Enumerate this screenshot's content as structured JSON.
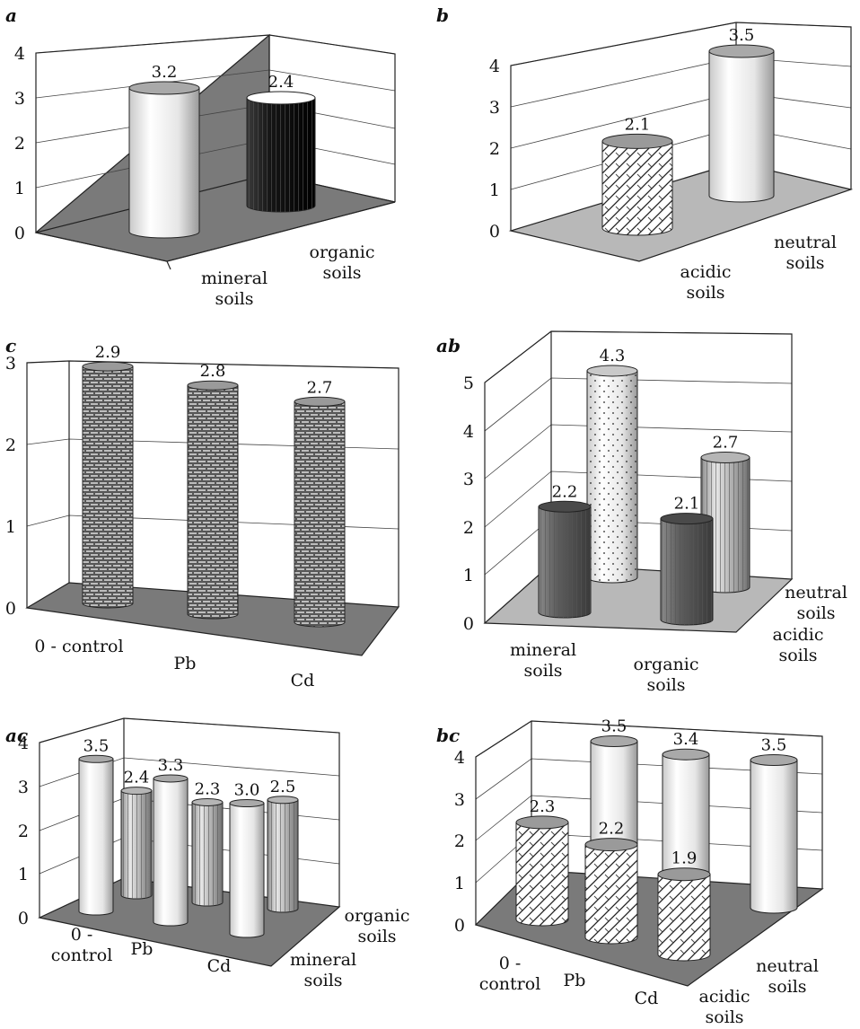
{
  "chart_data": [
    {
      "id": "a",
      "title": "a",
      "type": "bar",
      "ylim": [
        0,
        4
      ],
      "categories": [
        "mineral soils",
        "organic soils"
      ],
      "values": [
        3.2,
        2.4
      ],
      "labels": [
        "3.2",
        "2.4"
      ],
      "styles": [
        "light",
        "black"
      ]
    },
    {
      "id": "b",
      "title": "b",
      "type": "bar",
      "ylim": [
        0,
        4
      ],
      "categories": [
        "acidic soils",
        "neutral soils"
      ],
      "values": [
        2.1,
        3.5
      ],
      "labels": [
        "2.1",
        "3.5"
      ],
      "styles": [
        "hatch",
        "light"
      ]
    },
    {
      "id": "c",
      "title": "c",
      "type": "bar",
      "ylim": [
        0,
        3
      ],
      "categories": [
        "0 - control",
        "Pb",
        "Cd"
      ],
      "values": [
        2.9,
        2.8,
        2.7
      ],
      "labels": [
        "2.9",
        "2.8",
        "2.7"
      ],
      "styles": [
        "brick",
        "brick",
        "brick"
      ]
    },
    {
      "id": "ab",
      "title": "ab",
      "type": "bar",
      "ylim": [
        0,
        5
      ],
      "categories": [
        "mineral soils",
        "organic soils"
      ],
      "series": [
        {
          "name": "acidic soils",
          "values": [
            2.2,
            2.1
          ]
        },
        {
          "name": "neutral soils",
          "values": [
            4.3,
            2.7
          ]
        }
      ],
      "labels": [
        "2.2",
        "4.3",
        "2.1",
        "2.7"
      ]
    },
    {
      "id": "ac",
      "title": "ac",
      "type": "bar",
      "ylim": [
        0,
        4
      ],
      "categories": [
        "0 - control",
        "Pb",
        "Cd"
      ],
      "series": [
        {
          "name": "mineral soils",
          "values": [
            3.5,
            3.3,
            3.0
          ]
        },
        {
          "name": "organic soils",
          "values": [
            2.4,
            2.3,
            2.5
          ]
        }
      ],
      "labels": [
        "3.5",
        "2.4",
        "3.3",
        "2.3",
        "3.0",
        "2.5"
      ]
    },
    {
      "id": "bc",
      "title": "bc",
      "type": "bar",
      "ylim": [
        0,
        4
      ],
      "categories": [
        "0 - control",
        "Pb",
        "Cd"
      ],
      "series": [
        {
          "name": "acidic soils",
          "values": [
            2.3,
            2.2,
            1.9
          ]
        },
        {
          "name": "neutral soils",
          "values": [
            3.5,
            3.4,
            3.5
          ]
        }
      ],
      "labels": [
        "2.3",
        "3.5",
        "2.2",
        "3.4",
        "1.9",
        "3.5"
      ]
    }
  ]
}
